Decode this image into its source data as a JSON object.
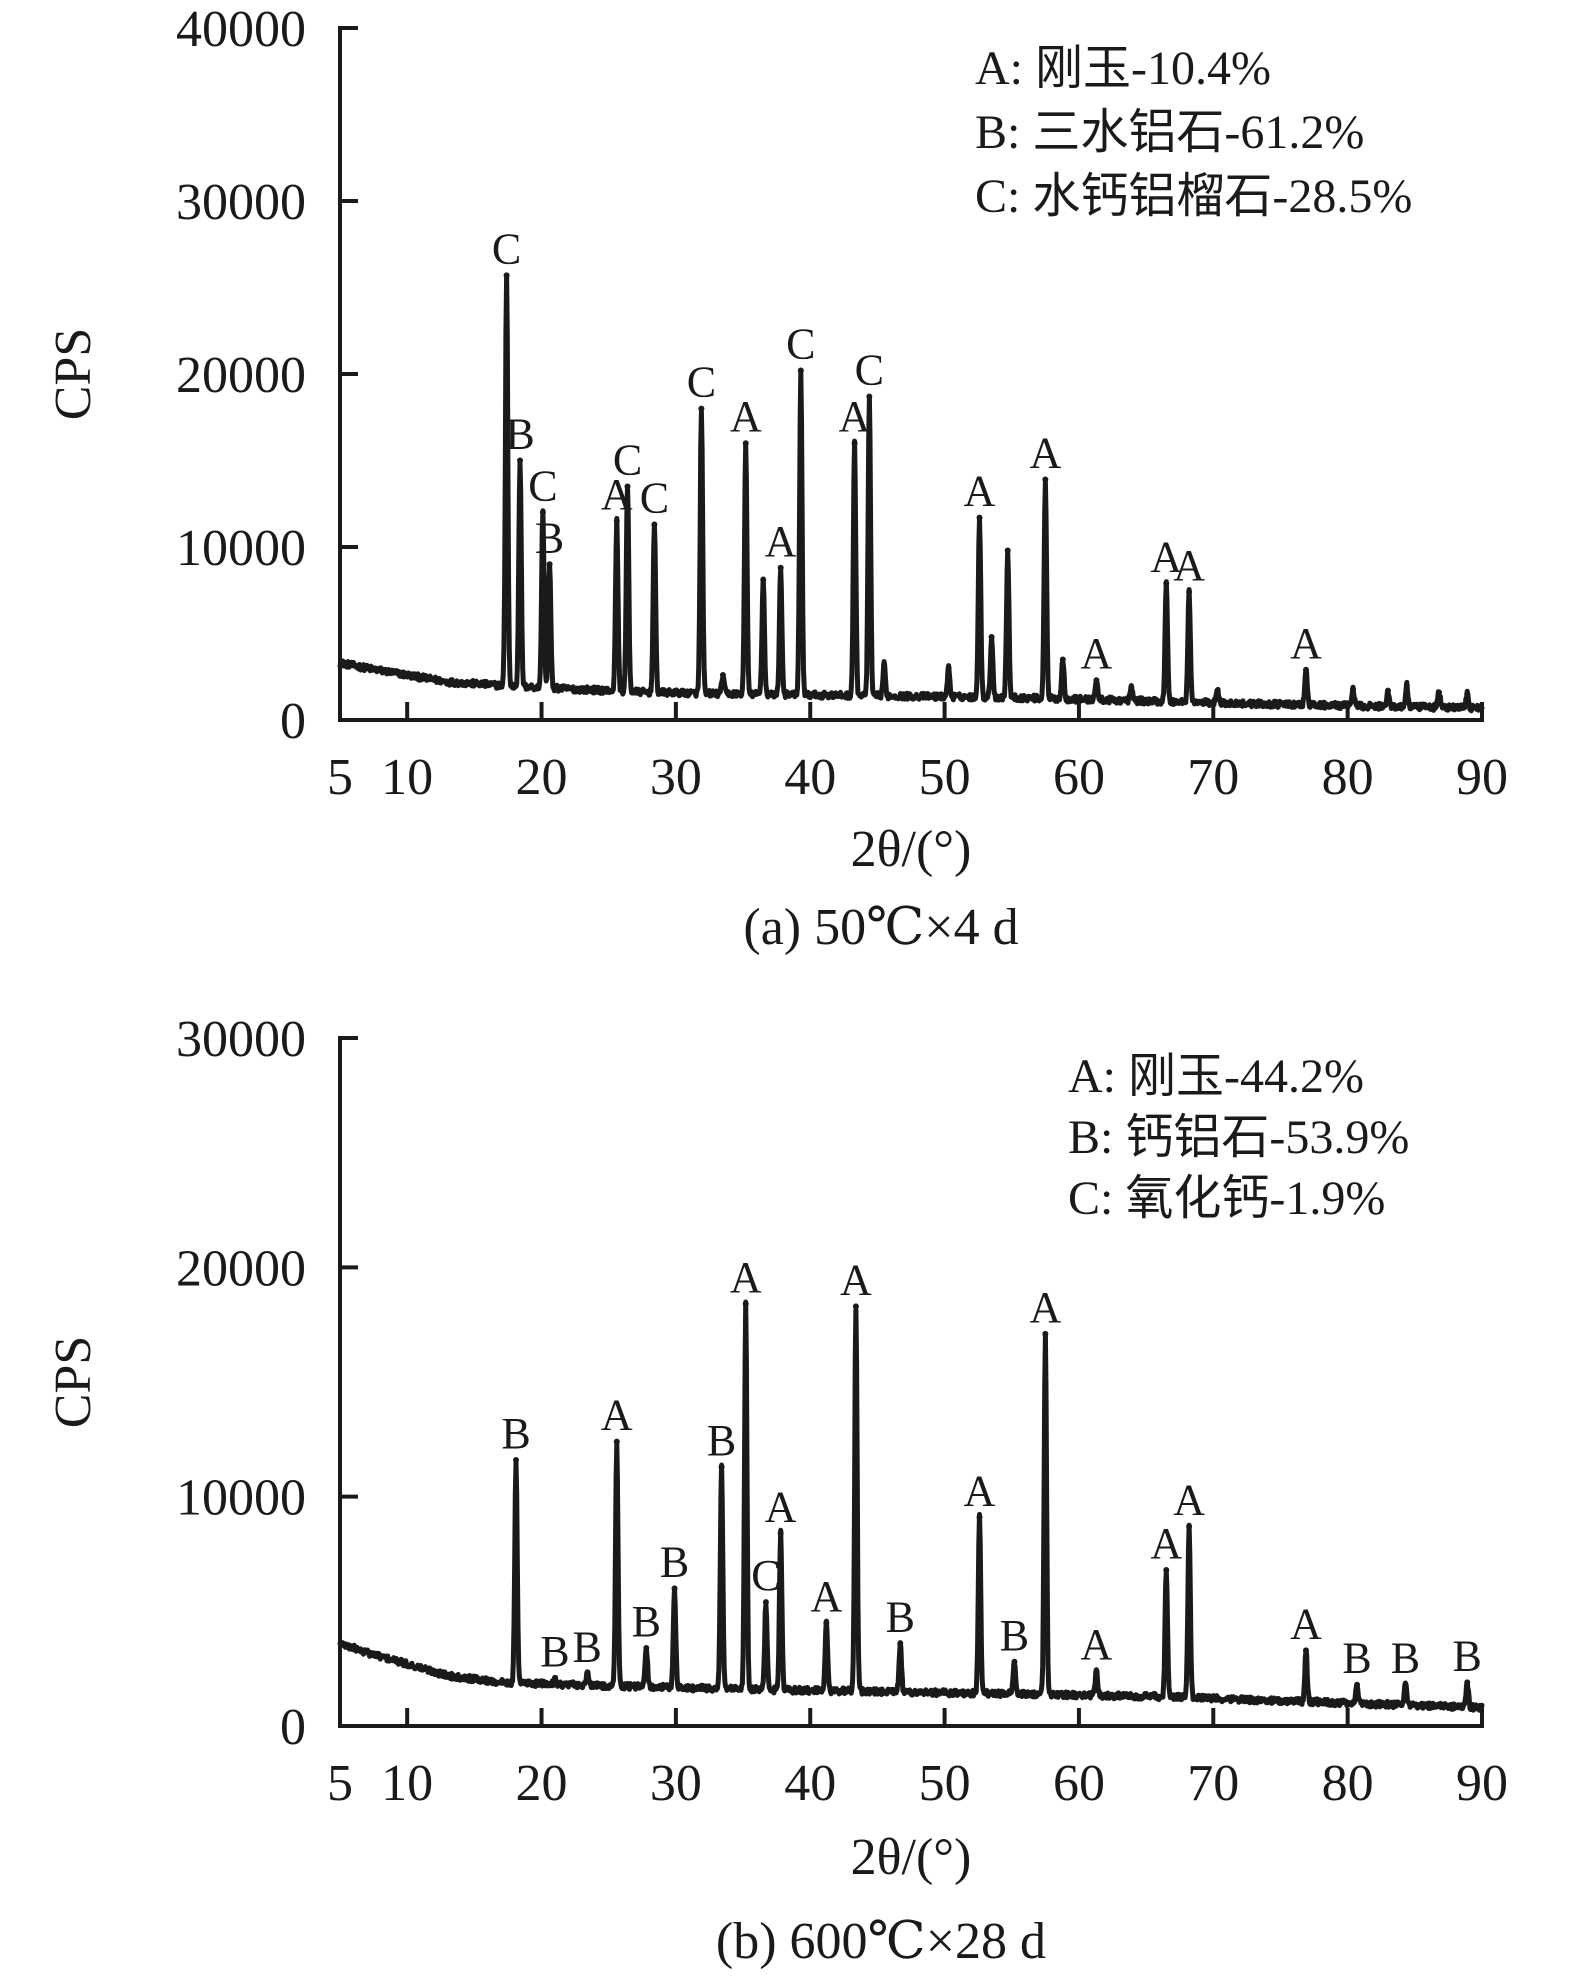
{
  "chart_data": [
    {
      "type": "line",
      "panel": "a",
      "caption": "(a) 50℃×4 d",
      "xlabel": "2θ/(°)",
      "ylabel": "CPS",
      "xlim": [
        5,
        90
      ],
      "ylim": [
        0,
        40000
      ],
      "x_ticks": [
        5,
        10,
        20,
        30,
        40,
        50,
        60,
        70,
        80,
        90
      ],
      "y_ticks": [
        0,
        10000,
        20000,
        30000,
        40000
      ],
      "grid": false,
      "legend_position": "top-right",
      "legend": [
        "A: 刚玉-10.4%",
        "B: 三水铝石-61.2%",
        "C: 水钙铝榴石-28.5%"
      ],
      "background": [
        [
          5,
          3300
        ],
        [
          7,
          3000
        ],
        [
          10,
          2600
        ],
        [
          13,
          2200
        ],
        [
          17,
          2000
        ],
        [
          22,
          1800
        ],
        [
          28,
          1600
        ],
        [
          35,
          1500
        ],
        [
          45,
          1400
        ],
        [
          55,
          1300
        ],
        [
          65,
          1100
        ],
        [
          75,
          900
        ],
        [
          85,
          750
        ],
        [
          90,
          700
        ]
      ],
      "peaks": [
        {
          "x": 17.4,
          "y": 25700,
          "label": "C"
        },
        {
          "x": 18.4,
          "y": 15000,
          "label": "B"
        },
        {
          "x": 20.1,
          "y": 12000,
          "label": "C"
        },
        {
          "x": 20.6,
          "y": 9000,
          "label": "B"
        },
        {
          "x": 25.6,
          "y": 11500,
          "label": "A"
        },
        {
          "x": 26.4,
          "y": 13500,
          "label": "C"
        },
        {
          "x": 28.4,
          "y": 11300,
          "label": "C"
        },
        {
          "x": 31.9,
          "y": 18000,
          "label": "C"
        },
        {
          "x": 33.5,
          "y": 2600,
          "label": ""
        },
        {
          "x": 35.2,
          "y": 16000,
          "label": "A"
        },
        {
          "x": 36.5,
          "y": 8100,
          "label": ""
        },
        {
          "x": 37.8,
          "y": 8800,
          "label": "A"
        },
        {
          "x": 39.3,
          "y": 20200,
          "label": "C"
        },
        {
          "x": 43.3,
          "y": 16000,
          "label": "A"
        },
        {
          "x": 44.4,
          "y": 18700,
          "label": "C"
        },
        {
          "x": 45.5,
          "y": 3200,
          "label": ""
        },
        {
          "x": 50.3,
          "y": 3000,
          "label": ""
        },
        {
          "x": 52.6,
          "y": 11700,
          "label": "A"
        },
        {
          "x": 53.5,
          "y": 4800,
          "label": ""
        },
        {
          "x": 54.7,
          "y": 9800,
          "label": ""
        },
        {
          "x": 57.5,
          "y": 13900,
          "label": "A"
        },
        {
          "x": 58.8,
          "y": 3500,
          "label": ""
        },
        {
          "x": 61.3,
          "y": 2300,
          "label": "A"
        },
        {
          "x": 63.9,
          "y": 1900,
          "label": ""
        },
        {
          "x": 66.5,
          "y": 7900,
          "label": "A"
        },
        {
          "x": 68.2,
          "y": 7400,
          "label": "A"
        },
        {
          "x": 70.3,
          "y": 1700,
          "label": ""
        },
        {
          "x": 76.9,
          "y": 2900,
          "label": "A"
        },
        {
          "x": 80.4,
          "y": 1800,
          "label": ""
        },
        {
          "x": 83.0,
          "y": 1700,
          "label": ""
        },
        {
          "x": 84.4,
          "y": 2000,
          "label": ""
        },
        {
          "x": 86.8,
          "y": 1600,
          "label": ""
        },
        {
          "x": 88.9,
          "y": 1500,
          "label": ""
        }
      ]
    },
    {
      "type": "line",
      "panel": "b",
      "caption": "(b) 600℃×28 d",
      "xlabel": "2θ/(°)",
      "ylabel": "CPS",
      "xlim": [
        5,
        90
      ],
      "ylim": [
        0,
        30000
      ],
      "x_ticks": [
        5,
        10,
        20,
        30,
        40,
        50,
        60,
        70,
        80,
        90
      ],
      "y_ticks": [
        0,
        10000,
        20000,
        30000
      ],
      "grid": false,
      "legend_position": "top-right",
      "legend": [
        "A: 刚玉-44.2%",
        "B: 钙铝石-53.9%",
        "C: 氧化钙-1.9%"
      ],
      "background": [
        [
          5,
          3600
        ],
        [
          7,
          3200
        ],
        [
          10,
          2700
        ],
        [
          13,
          2200
        ],
        [
          17,
          1900
        ],
        [
          22,
          1800
        ],
        [
          28,
          1700
        ],
        [
          35,
          1600
        ],
        [
          45,
          1500
        ],
        [
          55,
          1400
        ],
        [
          65,
          1300
        ],
        [
          75,
          1100
        ],
        [
          85,
          900
        ],
        [
          90,
          800
        ]
      ],
      "peaks": [
        {
          "x": 18.1,
          "y": 11600,
          "label": "B"
        },
        {
          "x": 21.0,
          "y": 2100,
          "label": "B"
        },
        {
          "x": 23.4,
          "y": 2300,
          "label": "B"
        },
        {
          "x": 25.6,
          "y": 12400,
          "label": "A"
        },
        {
          "x": 27.8,
          "y": 3400,
          "label": "B"
        },
        {
          "x": 29.9,
          "y": 6000,
          "label": "B"
        },
        {
          "x": 33.4,
          "y": 11300,
          "label": "B"
        },
        {
          "x": 35.2,
          "y": 18400,
          "label": "A"
        },
        {
          "x": 36.7,
          "y": 5400,
          "label": "C"
        },
        {
          "x": 37.8,
          "y": 8400,
          "label": "A"
        },
        {
          "x": 41.2,
          "y": 4500,
          "label": "A"
        },
        {
          "x": 43.4,
          "y": 18300,
          "label": "A"
        },
        {
          "x": 46.7,
          "y": 3600,
          "label": "B"
        },
        {
          "x": 52.6,
          "y": 9100,
          "label": "A"
        },
        {
          "x": 55.2,
          "y": 2800,
          "label": "B"
        },
        {
          "x": 57.5,
          "y": 17100,
          "label": "A"
        },
        {
          "x": 61.3,
          "y": 2400,
          "label": "A"
        },
        {
          "x": 66.5,
          "y": 6800,
          "label": "A"
        },
        {
          "x": 68.2,
          "y": 8700,
          "label": "A"
        },
        {
          "x": 76.9,
          "y": 3300,
          "label": "A"
        },
        {
          "x": 80.7,
          "y": 1800,
          "label": "B"
        },
        {
          "x": 84.3,
          "y": 1800,
          "label": "B"
        },
        {
          "x": 88.9,
          "y": 1900,
          "label": "B"
        }
      ]
    }
  ]
}
